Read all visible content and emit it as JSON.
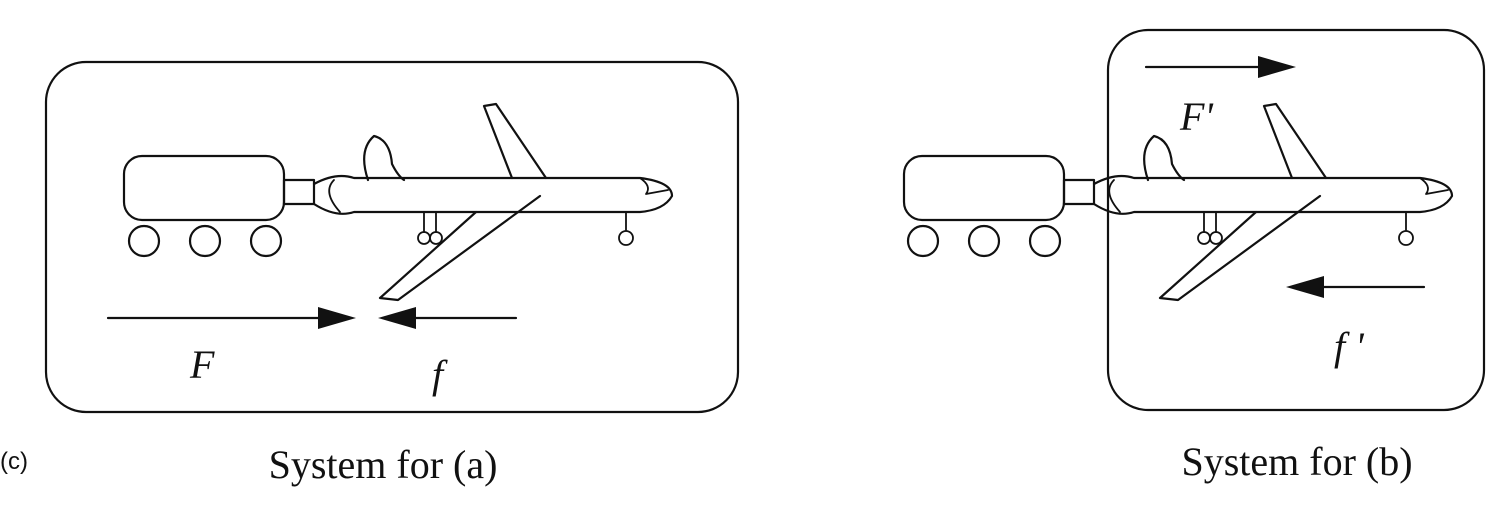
{
  "part_label": "(c)",
  "panels": [
    {
      "caption": "System for (a)",
      "forces": {
        "applied": "F",
        "friction": "f"
      }
    },
    {
      "caption": "System for (b)",
      "forces": {
        "applied": "F'",
        "friction": "f '"
      }
    }
  ],
  "colors": {
    "ink": "#111111",
    "background": "#ffffff"
  }
}
